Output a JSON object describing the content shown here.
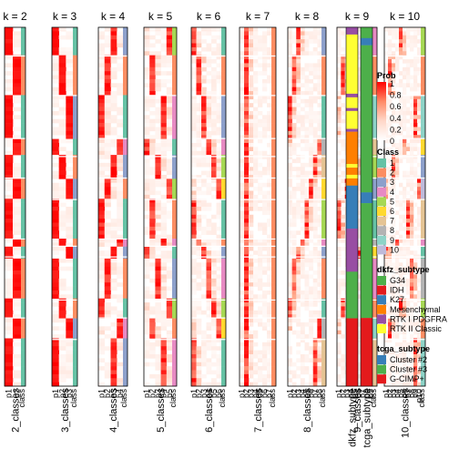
{
  "chart_data": {
    "type": "heatmap",
    "panel_titles": [
      "k = 2",
      "k = 3",
      "k = 4",
      "k = 5",
      "k = 6",
      "k = 7",
      "k = 8",
      "k = 9",
      "k = 10"
    ],
    "bottom_labels": [
      "2_classes",
      "3_classes",
      "4_classes",
      "5_classes",
      "6_classes",
      "7_classes",
      "8_classes",
      "9_classes",
      "10_classes"
    ],
    "column_labels": [
      [
        "p1",
        "p2"
      ],
      [
        "p1",
        "p2",
        "p3"
      ],
      [
        "p1",
        "p2",
        "p3",
        "p4"
      ],
      [
        "p1",
        "p2",
        "p3",
        "p4",
        "p5"
      ],
      [
        "p1",
        "p2",
        "p3",
        "p4",
        "p5",
        "p6"
      ],
      [
        "p1",
        "p2",
        "p3",
        "p4",
        "p5",
        "p6",
        "p7"
      ],
      [
        "p1",
        "p2",
        "p3",
        "p4",
        "p5",
        "p6",
        "p7",
        "p8"
      ],
      [
        "p1",
        "p2",
        "p3",
        "p4",
        "p5",
        "p6",
        "p7",
        "p8",
        "p9"
      ],
      [
        "p1",
        "p2",
        "p3",
        "p4",
        "p5",
        "p6",
        "p7",
        "p8",
        "p9",
        "p10"
      ]
    ],
    "annotation_columns": [
      "dkfz_subtype",
      "tcga_subtype"
    ],
    "legends": {
      "prob": {
        "title": "Prob",
        "ticks": [
          1,
          0.8,
          0.6,
          0.4,
          0.2,
          0
        ],
        "colors": [
          "#ff0000",
          "#ff8a66",
          "#ffd7c8",
          "#ffffff"
        ]
      },
      "class": {
        "title": "Class",
        "items": [
          {
            "label": "1",
            "color": "#66C2A5"
          },
          {
            "label": "2",
            "color": "#FC8D62"
          },
          {
            "label": "3",
            "color": "#8DA0CB"
          },
          {
            "label": "4",
            "color": "#E78AC3"
          },
          {
            "label": "5",
            "color": "#A6D854"
          },
          {
            "label": "6",
            "color": "#FFD92F"
          },
          {
            "label": "7",
            "color": "#E5C494"
          },
          {
            "label": "8",
            "color": "#B3B3B3"
          },
          {
            "label": "9",
            "color": "#8DD3C7"
          },
          {
            "label": "10",
            "color": "#BEBADA"
          }
        ]
      },
      "dkfz": {
        "title": "dkfz_subtype",
        "items": [
          {
            "label": "G34",
            "color": "#4DAF4A"
          },
          {
            "label": "IDH",
            "color": "#E41A1C"
          },
          {
            "label": "K27",
            "color": "#377EB8"
          },
          {
            "label": "Mesenchymal",
            "color": "#FF7F00"
          },
          {
            "label": "RTK I PDGFRA",
            "color": "#984EA3"
          },
          {
            "label": "RTK II Classic",
            "color": "#FFFF33"
          }
        ]
      },
      "tcga": {
        "title": "tcga_subtype",
        "items": [
          {
            "label": "Cluster #2",
            "color": "#377EB8"
          },
          {
            "label": "Cluster #3",
            "color": "#4DAF4A"
          },
          {
            "label": "G-CIMP+",
            "color": "#E41A1C"
          }
        ]
      }
    },
    "sample_groups": {
      "dkfz_subtype": [
        {
          "label": "RTK I PDGFRA",
          "frac": 0.02
        },
        {
          "label": "RTK II Classic",
          "frac": 0.165
        },
        {
          "label": "RTK I PDGFRA",
          "frac": 0.01
        },
        {
          "label": "RTK II Classic",
          "frac": 0.03
        },
        {
          "label": "RTK I PDGFRA",
          "frac": 0.008
        },
        {
          "label": "RTK II Classic",
          "frac": 0.05
        },
        {
          "label": "RTK I PDGFRA",
          "frac": 0.008
        },
        {
          "label": "Mesenchymal",
          "frac": 0.09
        },
        {
          "label": "RTK II Classic",
          "frac": 0.01
        },
        {
          "label": "Mesenchymal",
          "frac": 0.02
        },
        {
          "label": "RTK II Classic",
          "frac": 0.01
        },
        {
          "label": "Mesenchymal",
          "frac": 0.02
        },
        {
          "label": "K27",
          "frac": 0.12
        },
        {
          "label": "RTK I PDGFRA",
          "frac": 0.12
        },
        {
          "label": "G34",
          "frac": 0.13
        },
        {
          "label": "IDH",
          "frac": 0.189
        }
      ],
      "tcga_subtype": [
        {
          "label": "Cluster #3",
          "frac": 0.03
        },
        {
          "label": "Cluster #2",
          "frac": 0.02
        },
        {
          "label": "Cluster #3",
          "frac": 0.41
        },
        {
          "label": "Cluster #2",
          "frac": 0.03
        },
        {
          "label": "Cluster #3",
          "frac": 0.32
        },
        {
          "label": "G-CIMP+",
          "frac": 0.19
        }
      ]
    }
  }
}
